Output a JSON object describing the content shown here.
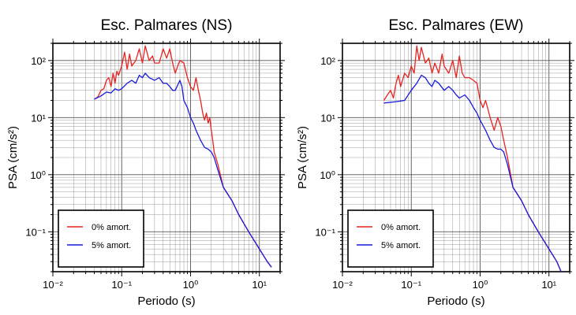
{
  "chart_data": [
    {
      "type": "line",
      "title": "Esc. Palmares (NS)",
      "xlabel": "Periodo (s)",
      "ylabel": "PSA (cm/s²)",
      "xscale": "log",
      "yscale": "log",
      "xlim": [
        0.01,
        20
      ],
      "ylim": [
        0.02,
        200
      ],
      "grid": true,
      "legend_position": "bottom-left",
      "xticks": [
        "10⁻²",
        "10⁻¹",
        "10⁰",
        "10¹"
      ],
      "yticks": [
        "10⁻¹",
        "10⁰",
        "10¹",
        "10²"
      ],
      "series": [
        {
          "name": "0% amort.",
          "color": "#e8231f",
          "points": [
            [
              0.04,
              21
            ],
            [
              0.045,
              23
            ],
            [
              0.05,
              30
            ],
            [
              0.055,
              32
            ],
            [
              0.06,
              45
            ],
            [
              0.065,
              50
            ],
            [
              0.07,
              35
            ],
            [
              0.075,
              60
            ],
            [
              0.08,
              40
            ],
            [
              0.085,
              65
            ],
            [
              0.09,
              55
            ],
            [
              0.1,
              80
            ],
            [
              0.11,
              140
            ],
            [
              0.12,
              70
            ],
            [
              0.13,
              130
            ],
            [
              0.14,
              80
            ],
            [
              0.16,
              100
            ],
            [
              0.18,
              160
            ],
            [
              0.2,
              90
            ],
            [
              0.22,
              180
            ],
            [
              0.25,
              100
            ],
            [
              0.28,
              120
            ],
            [
              0.3,
              90
            ],
            [
              0.35,
              90
            ],
            [
              0.4,
              160
            ],
            [
              0.45,
              110
            ],
            [
              0.5,
              160
            ],
            [
              0.55,
              90
            ],
            [
              0.6,
              60
            ],
            [
              0.65,
              80
            ],
            [
              0.7,
              100
            ],
            [
              0.8,
              90
            ],
            [
              0.9,
              50
            ],
            [
              1.0,
              35
            ],
            [
              1.1,
              30
            ],
            [
              1.2,
              50
            ],
            [
              1.3,
              30
            ],
            [
              1.4,
              20
            ],
            [
              1.5,
              12
            ],
            [
              1.6,
              9
            ],
            [
              1.7,
              12
            ],
            [
              1.8,
              8
            ],
            [
              1.9,
              10
            ],
            [
              2.0,
              6
            ],
            [
              2.1,
              4
            ],
            [
              2.2,
              2.5
            ],
            [
              2.5,
              1.5
            ],
            [
              3.0,
              0.6
            ],
            [
              4.0,
              0.35
            ],
            [
              5.0,
              0.2
            ],
            [
              7.0,
              0.1
            ],
            [
              10.0,
              0.05
            ],
            [
              13.0,
              0.03
            ],
            [
              15.0,
              0.024
            ]
          ]
        },
        {
          "name": "5% amort.",
          "color": "#1a1adb",
          "points": [
            [
              0.04,
              21
            ],
            [
              0.05,
              24
            ],
            [
              0.06,
              28
            ],
            [
              0.07,
              27
            ],
            [
              0.08,
              32
            ],
            [
              0.09,
              30
            ],
            [
              0.1,
              32
            ],
            [
              0.12,
              40
            ],
            [
              0.14,
              45
            ],
            [
              0.16,
              40
            ],
            [
              0.18,
              55
            ],
            [
              0.2,
              50
            ],
            [
              0.22,
              60
            ],
            [
              0.25,
              50
            ],
            [
              0.3,
              45
            ],
            [
              0.35,
              50
            ],
            [
              0.4,
              40
            ],
            [
              0.45,
              40
            ],
            [
              0.5,
              35
            ],
            [
              0.55,
              30
            ],
            [
              0.6,
              30
            ],
            [
              0.7,
              45
            ],
            [
              0.75,
              35
            ],
            [
              0.8,
              20
            ],
            [
              0.9,
              15
            ],
            [
              1.0,
              10
            ],
            [
              1.1,
              8
            ],
            [
              1.2,
              6
            ],
            [
              1.4,
              4
            ],
            [
              1.6,
              3
            ],
            [
              1.8,
              2.8
            ],
            [
              2.0,
              2.5
            ],
            [
              2.2,
              2
            ],
            [
              2.5,
              1.2
            ],
            [
              3.0,
              0.6
            ],
            [
              4.0,
              0.35
            ],
            [
              5.0,
              0.2
            ],
            [
              7.0,
              0.1
            ],
            [
              10.0,
              0.05
            ],
            [
              13.0,
              0.03
            ],
            [
              15.0,
              0.024
            ]
          ]
        }
      ]
    },
    {
      "type": "line",
      "title": "Esc. Palmares (EW)",
      "xlabel": "Periodo (s)",
      "ylabel": "PSA (cm/s²)",
      "xscale": "log",
      "yscale": "log",
      "xlim": [
        0.01,
        20
      ],
      "ylim": [
        0.02,
        200
      ],
      "grid": true,
      "legend_position": "bottom-left",
      "xticks": [
        "10⁻²",
        "10⁻¹",
        "10⁰",
        "10¹"
      ],
      "yticks": [
        "10⁻¹",
        "10⁰",
        "10¹",
        "10²"
      ],
      "series": [
        {
          "name": "0% amort.",
          "color": "#e8231f",
          "points": [
            [
              0.04,
              20
            ],
            [
              0.045,
              25
            ],
            [
              0.05,
              30
            ],
            [
              0.055,
              22
            ],
            [
              0.06,
              40
            ],
            [
              0.065,
              55
            ],
            [
              0.07,
              35
            ],
            [
              0.08,
              60
            ],
            [
              0.09,
              50
            ],
            [
              0.1,
              80
            ],
            [
              0.11,
              60
            ],
            [
              0.12,
              180
            ],
            [
              0.13,
              100
            ],
            [
              0.14,
              170
            ],
            [
              0.16,
              90
            ],
            [
              0.18,
              110
            ],
            [
              0.2,
              60
            ],
            [
              0.22,
              90
            ],
            [
              0.25,
              60
            ],
            [
              0.28,
              130
            ],
            [
              0.3,
              80
            ],
            [
              0.35,
              60
            ],
            [
              0.4,
              100
            ],
            [
              0.45,
              50
            ],
            [
              0.5,
              120
            ],
            [
              0.55,
              60
            ],
            [
              0.6,
              50
            ],
            [
              0.7,
              50
            ],
            [
              0.8,
              45
            ],
            [
              0.9,
              40
            ],
            [
              1.0,
              20
            ],
            [
              1.1,
              15
            ],
            [
              1.2,
              20
            ],
            [
              1.4,
              10
            ],
            [
              1.6,
              6
            ],
            [
              1.8,
              10
            ],
            [
              2.0,
              7
            ],
            [
              2.2,
              4
            ],
            [
              2.5,
              2
            ],
            [
              3.0,
              0.6
            ],
            [
              4.0,
              0.35
            ],
            [
              5.0,
              0.2
            ],
            [
              7.0,
              0.1
            ],
            [
              10.0,
              0.05
            ],
            [
              13.0,
              0.03
            ],
            [
              15.0,
              0.02
            ]
          ]
        },
        {
          "name": "5% amort.",
          "color": "#1a1adb",
          "points": [
            [
              0.04,
              18
            ],
            [
              0.06,
              19
            ],
            [
              0.08,
              20
            ],
            [
              0.1,
              30
            ],
            [
              0.12,
              40
            ],
            [
              0.14,
              55
            ],
            [
              0.16,
              50
            ],
            [
              0.18,
              40
            ],
            [
              0.2,
              35
            ],
            [
              0.22,
              45
            ],
            [
              0.25,
              40
            ],
            [
              0.3,
              30
            ],
            [
              0.35,
              35
            ],
            [
              0.4,
              30
            ],
            [
              0.45,
              25
            ],
            [
              0.5,
              22
            ],
            [
              0.6,
              25
            ],
            [
              0.7,
              20
            ],
            [
              0.8,
              15
            ],
            [
              0.9,
              12
            ],
            [
              1.0,
              9
            ],
            [
              1.2,
              6
            ],
            [
              1.4,
              4
            ],
            [
              1.6,
              3
            ],
            [
              1.8,
              2.8
            ],
            [
              2.0,
              2.8
            ],
            [
              2.2,
              2.5
            ],
            [
              2.5,
              1.5
            ],
            [
              3.0,
              0.6
            ],
            [
              4.0,
              0.35
            ],
            [
              5.0,
              0.2
            ],
            [
              7.0,
              0.1
            ],
            [
              10.0,
              0.05
            ],
            [
              13.0,
              0.03
            ],
            [
              15.0,
              0.02
            ]
          ]
        }
      ]
    }
  ]
}
